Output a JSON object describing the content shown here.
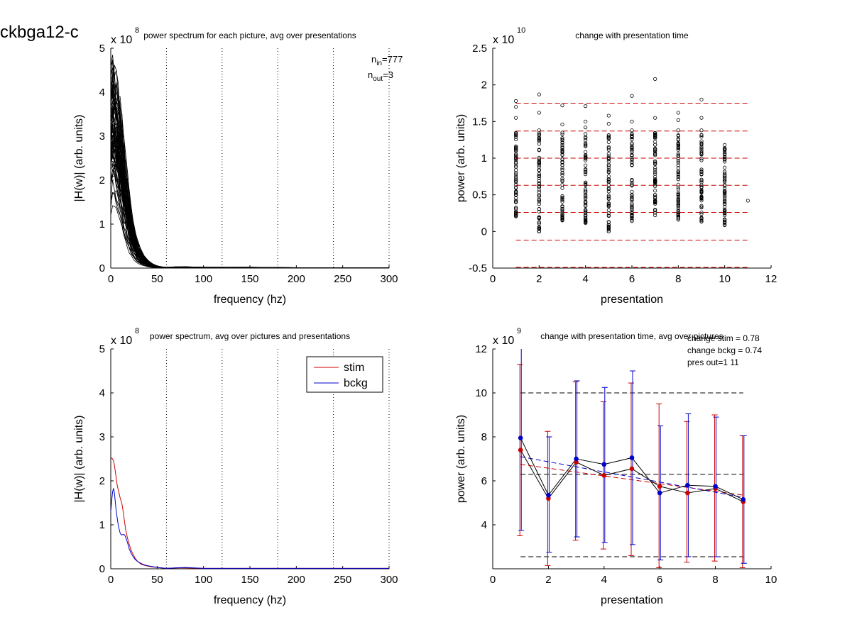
{
  "figure_title": "ckbga12-c",
  "chart_data": [
    {
      "id": "p1",
      "type": "line",
      "title": "power spectrum for each picture, avg over presentations",
      "xlabel": "frequency (hz)",
      "ylabel": "|H(w)| (arb. units)",
      "y_exponent": "x 10",
      "y_exponent_power": "8",
      "xlim": [
        0,
        300
      ],
      "ylim": [
        0,
        5
      ],
      "xticks": [
        0,
        50,
        100,
        150,
        200,
        250,
        300
      ],
      "yticks": [
        0,
        1,
        2,
        3,
        4,
        5
      ],
      "vlines": [
        60,
        120,
        180,
        240,
        300
      ],
      "annotation": {
        "n_in_label": "n",
        "n_in_sub": "in",
        "n_in_value": "=777",
        "n_out_label": "n",
        "n_out_sub": "out",
        "n_out_value": "=3"
      },
      "series_note": "many overlaid spectra (one per picture)",
      "envelope": {
        "x": [
          0,
          2,
          4,
          6,
          8,
          10,
          12,
          14,
          16,
          18,
          20,
          22,
          25,
          28,
          32,
          36,
          40,
          45,
          50,
          55,
          60,
          70,
          80,
          100,
          150,
          200,
          250,
          300
        ],
        "upper": [
          4.6,
          4.85,
          4.7,
          4.5,
          4.2,
          3.9,
          3.5,
          3.0,
          2.6,
          2.2,
          1.8,
          1.4,
          1.0,
          0.7,
          0.45,
          0.28,
          0.18,
          0.1,
          0.05,
          0.03,
          0.02,
          0.03,
          0.03,
          0.02,
          0.02,
          0.01,
          0.01,
          0.01
        ],
        "lower": [
          0.7,
          0.9,
          0.9,
          0.8,
          0.7,
          0.55,
          0.45,
          0.35,
          0.25,
          0.18,
          0.12,
          0.08,
          0.05,
          0.03,
          0.02,
          0.01,
          0.0,
          0.0,
          0.0,
          0.0,
          0.0,
          0.0,
          0.0,
          0.0,
          0.0,
          0.0,
          0.0,
          0.0
        ]
      }
    },
    {
      "id": "p2",
      "type": "scatter",
      "title": "change with presentation time",
      "xlabel": "presentation",
      "ylabel": "power (arb. units)",
      "y_exponent": "x 10",
      "y_exponent_power": "10",
      "xlim": [
        0,
        12
      ],
      "ylim": [
        -0.5,
        2.5
      ],
      "xticks": [
        0,
        2,
        4,
        6,
        8,
        10,
        12
      ],
      "yticks": [
        -0.5,
        0,
        0.5,
        1,
        1.5,
        2,
        2.5
      ],
      "hlines": [
        1.75,
        1.37,
        1.0,
        0.63,
        0.26,
        -0.12,
        -0.49
      ],
      "hline_xrange": [
        1,
        11
      ],
      "columns": [
        {
          "x": 1,
          "min": 0.2,
          "max": 1.78,
          "outliers": [
            1.7,
            1.78,
            1.55
          ]
        },
        {
          "x": 2,
          "min": 0.0,
          "max": 1.87,
          "outliers": [
            0.0,
            1.87,
            1.62,
            1.38
          ]
        },
        {
          "x": 3,
          "min": 0.15,
          "max": 1.72,
          "outliers": [
            1.72,
            1.46,
            1.1
          ]
        },
        {
          "x": 4,
          "min": 0.11,
          "max": 1.71,
          "outliers": [
            1.71,
            1.5,
            1.42
          ]
        },
        {
          "x": 5,
          "min": 0.0,
          "max": 1.58,
          "outliers": [
            0.0,
            1.58,
            1.47
          ]
        },
        {
          "x": 6,
          "min": 0.14,
          "max": 1.85,
          "outliers": [
            1.85,
            1.5,
            1.38
          ]
        },
        {
          "x": 7,
          "min": 0.22,
          "max": 2.08,
          "outliers": [
            2.08,
            1.55,
            1.3
          ]
        },
        {
          "x": 8,
          "min": 0.15,
          "max": 1.62,
          "outliers": [
            1.62,
            1.52,
            1.38
          ]
        },
        {
          "x": 9,
          "min": 0.12,
          "max": 1.8,
          "outliers": [
            1.8,
            1.55,
            1.38
          ]
        },
        {
          "x": 10,
          "min": 0.08,
          "max": 1.18,
          "outliers": [
            1.18,
            1.12
          ]
        },
        {
          "x": 11,
          "min": 0.42,
          "max": 0.42,
          "outliers": [
            0.42
          ]
        }
      ]
    },
    {
      "id": "p3",
      "type": "line",
      "title": "power spectrum, avg over pictures and presentations",
      "xlabel": "frequency (hz)",
      "ylabel": "|H(w)| (arb. units)",
      "y_exponent": "x 10",
      "y_exponent_power": "8",
      "xlim": [
        0,
        300
      ],
      "ylim": [
        0,
        5
      ],
      "xticks": [
        0,
        50,
        100,
        150,
        200,
        250,
        300
      ],
      "yticks": [
        0,
        1,
        2,
        3,
        4,
        5
      ],
      "vlines": [
        60,
        120,
        180,
        240,
        300
      ],
      "legend": "top-right",
      "series": [
        {
          "name": "stim",
          "color": "#cc0000",
          "x": [
            0,
            1,
            2,
            3,
            4,
            5,
            6,
            7,
            8,
            9,
            10,
            11,
            12,
            13,
            14,
            15,
            16,
            18,
            20,
            22,
            24,
            26,
            28,
            30,
            33,
            36,
            40,
            45,
            50,
            55,
            60,
            70,
            80,
            100,
            150,
            200,
            250,
            300
          ],
          "y": [
            2.5,
            2.52,
            2.5,
            2.45,
            2.35,
            2.2,
            2.05,
            1.9,
            1.8,
            1.72,
            1.62,
            1.55,
            1.48,
            1.35,
            1.2,
            1.05,
            0.9,
            0.7,
            0.55,
            0.42,
            0.33,
            0.25,
            0.19,
            0.15,
            0.1,
            0.08,
            0.06,
            0.04,
            0.03,
            0.02,
            0.01,
            0.02,
            0.02,
            0.01,
            0.01,
            0.01,
            0.01,
            0.01
          ]
        },
        {
          "name": "bckg",
          "color": "#0000cc",
          "x": [
            0,
            1,
            2,
            3,
            4,
            5,
            6,
            7,
            8,
            9,
            10,
            11,
            12,
            13,
            14,
            15,
            16,
            18,
            20,
            22,
            24,
            26,
            28,
            30,
            33,
            36,
            40,
            45,
            50,
            55,
            60,
            70,
            80,
            100,
            150,
            200,
            250,
            300
          ],
          "y": [
            1.3,
            1.55,
            1.75,
            1.83,
            1.72,
            1.5,
            1.3,
            1.15,
            1.0,
            0.9,
            0.82,
            0.78,
            0.77,
            0.78,
            0.78,
            0.77,
            0.72,
            0.6,
            0.45,
            0.35,
            0.28,
            0.22,
            0.18,
            0.15,
            0.12,
            0.09,
            0.07,
            0.05,
            0.03,
            0.02,
            0.01,
            0.02,
            0.03,
            0.01,
            0.01,
            0.01,
            0.01,
            0.01
          ]
        }
      ]
    },
    {
      "id": "p4",
      "type": "line",
      "title": "change with presentation time, avg over pictures",
      "xlabel": "presentation",
      "ylabel": "power (arb. units)",
      "y_exponent": "x 10",
      "y_exponent_power": "9",
      "xlim": [
        0,
        10
      ],
      "ylim": [
        2,
        12
      ],
      "xticks": [
        0,
        2,
        4,
        6,
        8,
        10
      ],
      "yticks": [
        4,
        6,
        8,
        10,
        12
      ],
      "annotations": [
        "change stim = 0.78",
        "change bckg = 0.74",
        "pres out=1 11"
      ],
      "hlines": [
        10.0,
        6.3,
        2.55
      ],
      "hline_xrange": [
        1,
        9
      ],
      "series": [
        {
          "name": "stim",
          "color": "#cc0000",
          "x": [
            1,
            2,
            3,
            4,
            5,
            6,
            7,
            8,
            9
          ],
          "y": [
            7.4,
            5.2,
            6.85,
            6.25,
            6.55,
            5.75,
            5.45,
            5.65,
            5.05
          ],
          "err_lo": [
            3.5,
            2.15,
            3.3,
            2.9,
            2.6,
            2.05,
            2.3,
            2.35,
            2.05
          ],
          "err_hi": [
            11.3,
            8.25,
            10.5,
            9.6,
            10.45,
            9.5,
            8.7,
            9.0,
            8.05
          ],
          "trend": [
            6.75,
            5.35
          ]
        },
        {
          "name": "bckg",
          "color": "#0000cc",
          "x": [
            1,
            2,
            3,
            4,
            5,
            6,
            7,
            8,
            9
          ],
          "y": [
            7.95,
            5.35,
            7.0,
            6.75,
            7.05,
            5.45,
            5.8,
            5.75,
            5.15
          ],
          "err_lo": [
            3.75,
            2.75,
            3.45,
            3.2,
            3.1,
            2.4,
            2.55,
            2.55,
            2.25
          ],
          "err_hi": [
            12.1,
            8.0,
            10.55,
            10.25,
            11.0,
            8.5,
            9.05,
            8.9,
            8.05
          ],
          "trend": [
            7.1,
            5.25
          ]
        }
      ]
    }
  ]
}
